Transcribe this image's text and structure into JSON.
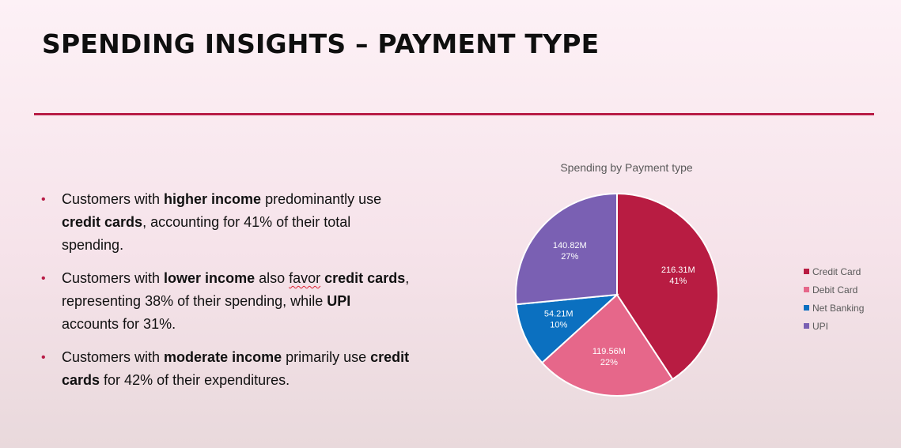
{
  "slide": {
    "title": "SPENDING INSIGHTS – PAYMENT TYPE",
    "bullets": [
      {
        "segments": [
          {
            "text": "Customers with ",
            "bold": false
          },
          {
            "text": "higher income",
            "bold": true
          },
          {
            "text": " predominantly use ",
            "bold": false
          },
          {
            "text": "credit cards",
            "bold": true
          },
          {
            "text": ", accounting for 41% of their total spending.",
            "bold": false
          }
        ]
      },
      {
        "segments": [
          {
            "text": "Customers with ",
            "bold": false
          },
          {
            "text": "lower income",
            "bold": true
          },
          {
            "text": " also ",
            "bold": false
          },
          {
            "text": "favor",
            "bold": false,
            "spellcheck": true
          },
          {
            "text": " ",
            "bold": false
          },
          {
            "text": "credit cards",
            "bold": true
          },
          {
            "text": ", representing 38% of their spending, while ",
            "bold": false
          },
          {
            "text": "UPI",
            "bold": true
          },
          {
            "text": " accounts for 31%.",
            "bold": false
          }
        ]
      },
      {
        "segments": [
          {
            "text": "Customers with ",
            "bold": false
          },
          {
            "text": "moderate income",
            "bold": true
          },
          {
            "text": " primarily use ",
            "bold": false
          },
          {
            "text": "credit cards",
            "bold": true
          },
          {
            "text": " for 42% of their expenditures.",
            "bold": false
          }
        ]
      }
    ],
    "colors": {
      "accent": "#b81c46",
      "bullet": "#b81c46"
    }
  },
  "chart_data": {
    "type": "pie",
    "title": "Spending by Payment type",
    "legend_position": "right",
    "slices": [
      {
        "name": "Credit Card",
        "value": 216.31,
        "value_label": "216.31M",
        "percent_label": "41%",
        "color": "#b81c42"
      },
      {
        "name": "Debit Card",
        "value": 119.56,
        "value_label": "119.56M",
        "percent_label": "22%",
        "color": "#e6678a"
      },
      {
        "name": "Net Banking",
        "value": 54.21,
        "value_label": "54.21M",
        "percent_label": "10%",
        "color": "#0b70c0"
      },
      {
        "name": "UPI",
        "value": 140.82,
        "value_label": "140.82M",
        "percent_label": "27%",
        "color": "#7a60b3"
      }
    ]
  }
}
